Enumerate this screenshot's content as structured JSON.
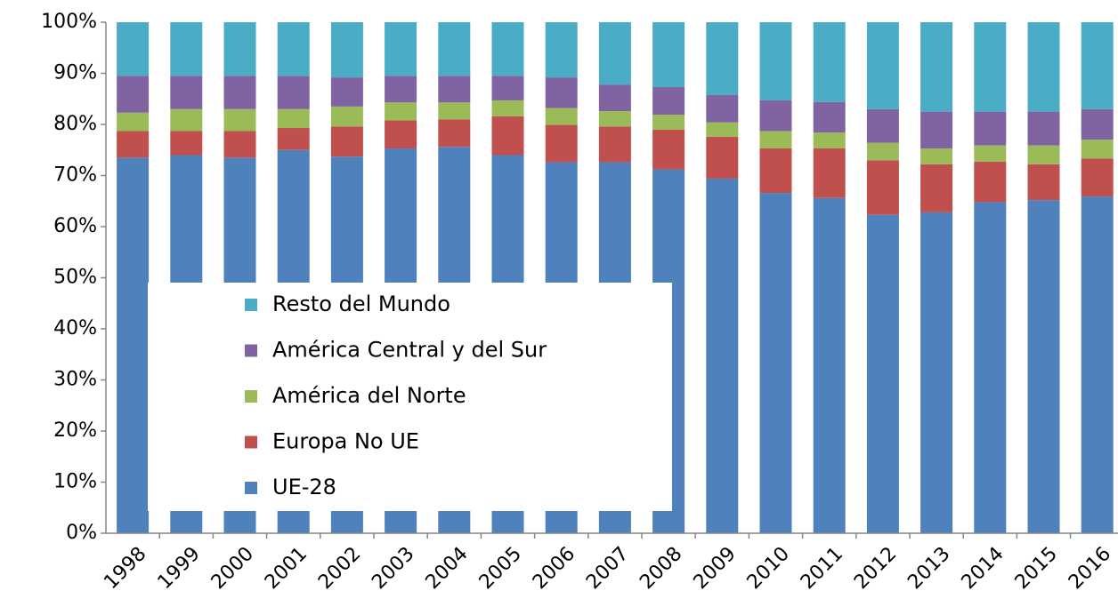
{
  "chart_data": {
    "type": "bar",
    "stacked": true,
    "categories": [
      "1998",
      "1999",
      "2000",
      "2001",
      "2002",
      "2003",
      "2004",
      "2005",
      "2006",
      "2007",
      "2008",
      "2009",
      "2010",
      "2011",
      "2012",
      "2013",
      "2014",
      "2015",
      "2016"
    ],
    "series": [
      {
        "name": "UE-28",
        "color": "#4f81bd",
        "values": [
          73.5,
          74.0,
          73.5,
          75.0,
          73.7,
          75.3,
          75.6,
          74.0,
          72.6,
          72.6,
          71.2,
          69.4,
          66.6,
          65.6,
          62.3,
          62.8,
          64.8,
          65.2,
          65.9
        ]
      },
      {
        "name": "Europa No UE",
        "color": "#c0504d",
        "values": [
          5.2,
          4.7,
          5.2,
          4.3,
          5.9,
          5.5,
          5.4,
          7.6,
          7.3,
          7.0,
          7.8,
          8.2,
          8.7,
          9.7,
          10.7,
          9.4,
          7.9,
          7.0,
          7.4
        ]
      },
      {
        "name": "América del Norte",
        "color": "#9bbb59",
        "values": [
          3.6,
          4.3,
          4.3,
          3.7,
          3.9,
          3.5,
          3.3,
          3.1,
          3.3,
          3.0,
          2.9,
          2.8,
          3.4,
          3.1,
          3.4,
          3.1,
          3.2,
          3.7,
          3.7
        ]
      },
      {
        "name": "América Central y del Sur",
        "color": "#8064a2",
        "values": [
          7.2,
          6.5,
          6.5,
          6.5,
          5.7,
          5.2,
          5.2,
          4.8,
          6.0,
          5.2,
          5.4,
          5.4,
          6.0,
          6.0,
          6.6,
          7.2,
          6.6,
          6.6,
          6.0
        ]
      },
      {
        "name": "Resto del Mundo",
        "color": "#4bacc6",
        "values": [
          10.5,
          10.5,
          10.5,
          10.5,
          10.8,
          10.5,
          10.5,
          10.5,
          10.8,
          12.2,
          12.7,
          14.2,
          15.3,
          15.6,
          17.0,
          17.5,
          17.5,
          17.5,
          17.0
        ]
      }
    ],
    "ylim": [
      0,
      100
    ],
    "yticks": [
      {
        "value": 0,
        "label": "0%"
      },
      {
        "value": 10,
        "label": "10%"
      },
      {
        "value": 20,
        "label": "20%"
      },
      {
        "value": 30,
        "label": "30%"
      },
      {
        "value": 40,
        "label": "40%"
      },
      {
        "value": 50,
        "label": "50%"
      },
      {
        "value": 60,
        "label": "60%"
      },
      {
        "value": 70,
        "label": "70%"
      },
      {
        "value": 80,
        "label": "80%"
      },
      {
        "value": 90,
        "label": "90%"
      },
      {
        "value": 100,
        "label": "100%"
      }
    ],
    "grid": false,
    "legend": "inside-left-bottom"
  }
}
